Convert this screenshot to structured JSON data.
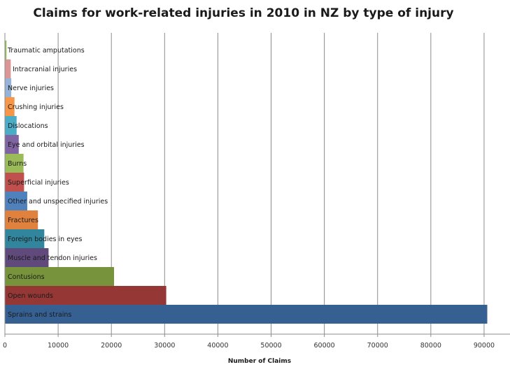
{
  "chart_data": {
    "type": "bar",
    "orientation": "horizontal",
    "title": "Claims for work-related injuries in 2010 in NZ by type of injury",
    "xlabel": "Number of Claims",
    "ylabel": "",
    "xlim": [
      0,
      95000
    ],
    "xticks": [
      0,
      10000,
      20000,
      30000,
      40000,
      50000,
      60000,
      70000,
      80000,
      90000
    ],
    "grid": "vertical",
    "legend": "none",
    "categories": [
      "Traumatic amputations",
      "Intracranial injuries",
      "Nerve injuries",
      "Crushing injuries",
      "Dislocations",
      "Eye and orbital injuries",
      "Burns",
      "Superficial injuries",
      "Other and unspecified injuries",
      "Fractures",
      "Foreign bodies in eyes",
      "Muscle and tendon injuries",
      "Contusions",
      "Open wounds",
      "Sprains and strains"
    ],
    "values": [
      300,
      1100,
      1200,
      1800,
      2200,
      2600,
      3500,
      3600,
      4200,
      6200,
      7400,
      8200,
      20500,
      30300,
      90600
    ],
    "colors": [
      "#9bbb59",
      "#d99694",
      "#95b3d7",
      "#f79646",
      "#4bacc6",
      "#8064a2",
      "#9bbb59",
      "#c0504d",
      "#4f81bd",
      "#e0823d",
      "#31859c",
      "#604a7b",
      "#77933c",
      "#953735",
      "#366092"
    ]
  }
}
